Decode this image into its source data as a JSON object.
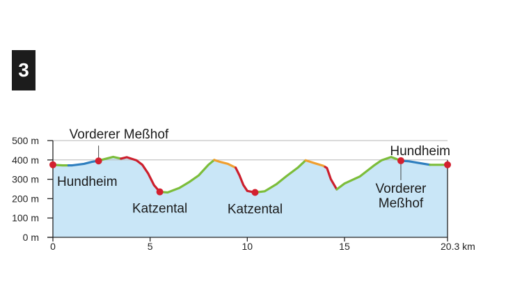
{
  "badge": "3",
  "chart_data": {
    "type": "area",
    "title": "",
    "xlabel": "",
    "ylabel": "",
    "x_unit": "km",
    "y_unit": "m",
    "xlim": [
      0,
      20.3
    ],
    "ylim": [
      0,
      500
    ],
    "x_ticks": [
      "0",
      "5",
      "10",
      "15",
      "20.3 km"
    ],
    "x_tick_values": [
      0,
      5,
      10,
      15,
      20.3
    ],
    "y_ticks": [
      "500 m",
      "400 m",
      "300 m",
      "200 m",
      "100 m",
      "0 m"
    ],
    "y_tick_values": [
      500,
      400,
      300,
      200,
      100,
      0
    ],
    "gridlines_y": [
      500,
      400
    ],
    "fill_color": "#c9e6f7",
    "profile": [
      {
        "x": 0,
        "y": 375
      },
      {
        "x": 0.5,
        "y": 372
      },
      {
        "x": 1.0,
        "y": 372
      },
      {
        "x": 1.6,
        "y": 380
      },
      {
        "x": 2.0,
        "y": 390
      },
      {
        "x": 2.3,
        "y": 395
      },
      {
        "x": 2.8,
        "y": 408
      },
      {
        "x": 3.1,
        "y": 416
      },
      {
        "x": 3.5,
        "y": 407
      },
      {
        "x": 3.8,
        "y": 414
      },
      {
        "x": 4.3,
        "y": 398
      },
      {
        "x": 4.6,
        "y": 375
      },
      {
        "x": 4.9,
        "y": 330
      },
      {
        "x": 5.2,
        "y": 270
      },
      {
        "x": 5.5,
        "y": 235
      },
      {
        "x": 5.9,
        "y": 232
      },
      {
        "x": 6.5,
        "y": 255
      },
      {
        "x": 7.0,
        "y": 285
      },
      {
        "x": 7.5,
        "y": 320
      },
      {
        "x": 8.0,
        "y": 375
      },
      {
        "x": 8.3,
        "y": 400
      },
      {
        "x": 8.6,
        "y": 390
      },
      {
        "x": 9.0,
        "y": 380
      },
      {
        "x": 9.4,
        "y": 360
      },
      {
        "x": 9.6,
        "y": 320
      },
      {
        "x": 9.8,
        "y": 270
      },
      {
        "x": 10.0,
        "y": 240
      },
      {
        "x": 10.4,
        "y": 232
      },
      {
        "x": 10.9,
        "y": 238
      },
      {
        "x": 11.5,
        "y": 275
      },
      {
        "x": 12.0,
        "y": 315
      },
      {
        "x": 12.6,
        "y": 360
      },
      {
        "x": 13.0,
        "y": 398
      },
      {
        "x": 13.5,
        "y": 382
      },
      {
        "x": 13.9,
        "y": 370
      },
      {
        "x": 14.1,
        "y": 358
      },
      {
        "x": 14.3,
        "y": 300
      },
      {
        "x": 14.6,
        "y": 248
      },
      {
        "x": 15.0,
        "y": 278
      },
      {
        "x": 15.8,
        "y": 315
      },
      {
        "x": 16.5,
        "y": 370
      },
      {
        "x": 16.9,
        "y": 398
      },
      {
        "x": 17.4,
        "y": 415
      },
      {
        "x": 17.9,
        "y": 396
      },
      {
        "x": 18.3,
        "y": 393
      },
      {
        "x": 18.9,
        "y": 383
      },
      {
        "x": 19.4,
        "y": 375
      },
      {
        "x": 20.3,
        "y": 375
      }
    ],
    "segments": [
      {
        "from": 0,
        "to": 0.8,
        "color": "#7cbd3a"
      },
      {
        "from": 0.8,
        "to": 2.3,
        "color": "#2f7fbf"
      },
      {
        "from": 2.3,
        "to": 3.5,
        "color": "#7cbd3a"
      },
      {
        "from": 3.5,
        "to": 5.5,
        "color": "#cc1f2d"
      },
      {
        "from": 5.5,
        "to": 8.3,
        "color": "#7cbd3a"
      },
      {
        "from": 8.3,
        "to": 9.4,
        "color": "#f0a030"
      },
      {
        "from": 9.4,
        "to": 10.4,
        "color": "#cc1f2d"
      },
      {
        "from": 10.4,
        "to": 13.0,
        "color": "#7cbd3a"
      },
      {
        "from": 13.0,
        "to": 14.0,
        "color": "#f0a030"
      },
      {
        "from": 14.0,
        "to": 14.6,
        "color": "#cc1f2d"
      },
      {
        "from": 14.6,
        "to": 18.0,
        "color": "#7cbd3a"
      },
      {
        "from": 18.0,
        "to": 19.4,
        "color": "#2f7fbf"
      },
      {
        "from": 19.4,
        "to": 20.3,
        "color": "#7cbd3a"
      }
    ],
    "waypoints": [
      {
        "x": 0,
        "y": 375,
        "lines": [
          "Hundheim"
        ],
        "pos": "below"
      },
      {
        "x": 2.35,
        "y": 395,
        "lines": [
          "Vorderer Meßhof"
        ],
        "pos": "above-line"
      },
      {
        "x": 5.5,
        "y": 235,
        "lines": [
          "Katzental"
        ],
        "pos": "below"
      },
      {
        "x": 10.4,
        "y": 232,
        "lines": [
          "Katzental"
        ],
        "pos": "below"
      },
      {
        "x": 17.9,
        "y": 396,
        "lines": [
          "Vorderer",
          "Meßhof"
        ],
        "pos": "below-line"
      },
      {
        "x": 20.3,
        "y": 375,
        "lines": [
          "Hundheim"
        ],
        "pos": "above"
      }
    ],
    "marker_color": "#d3202f"
  }
}
